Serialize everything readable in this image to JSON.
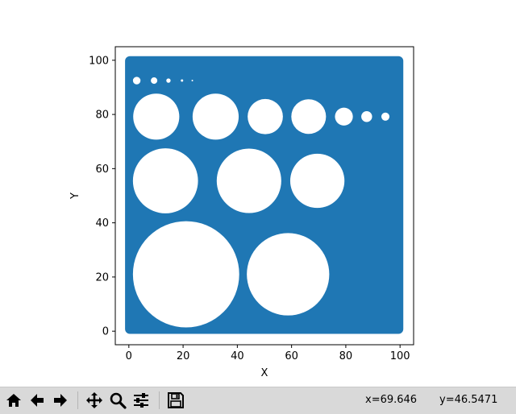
{
  "chart_data": {
    "type": "scatter",
    "title": "",
    "xlabel": "X",
    "ylabel": "Y",
    "xlim": [
      -5,
      105
    ],
    "ylim": [
      -5,
      105
    ],
    "xticks": [
      0,
      20,
      40,
      60,
      80,
      100
    ],
    "yticks": [
      0,
      20,
      40,
      60,
      80,
      100
    ],
    "xtick_labels": [
      "0",
      "20",
      "40",
      "60",
      "80",
      "100"
    ],
    "ytick_labels": [
      "0",
      "20",
      "40",
      "60",
      "80",
      "100"
    ],
    "fill_color": "#1f77b4",
    "filled_region": {
      "x": [
        -1.4,
        101.2
      ],
      "y": [
        -1.0,
        101.5
      ]
    },
    "holes": [
      {
        "x": 21.1,
        "y": 21.0,
        "r": 19.6
      },
      {
        "x": 58.7,
        "y": 21.0,
        "r": 15.2
      },
      {
        "x": 13.5,
        "y": 55.5,
        "r": 12.0
      },
      {
        "x": 44.3,
        "y": 55.5,
        "r": 11.9
      },
      {
        "x": 69.5,
        "y": 55.5,
        "r": 10.0
      },
      {
        "x": 10.1,
        "y": 79.2,
        "r": 8.5
      },
      {
        "x": 32.0,
        "y": 79.2,
        "r": 8.5
      },
      {
        "x": 50.3,
        "y": 79.2,
        "r": 6.5
      },
      {
        "x": 66.3,
        "y": 79.2,
        "r": 6.4
      },
      {
        "x": 79.3,
        "y": 79.2,
        "r": 3.3
      },
      {
        "x": 87.7,
        "y": 79.2,
        "r": 2.0
      },
      {
        "x": 94.6,
        "y": 79.2,
        "r": 1.5
      },
      {
        "x": 2.9,
        "y": 92.5,
        "r": 1.4
      },
      {
        "x": 9.3,
        "y": 92.5,
        "r": 1.2
      },
      {
        "x": 14.6,
        "y": 92.5,
        "r": 0.8
      },
      {
        "x": 19.6,
        "y": 92.5,
        "r": 0.45
      },
      {
        "x": 23.4,
        "y": 92.5,
        "r": 0.3
      }
    ],
    "grid": false,
    "legend": "none"
  },
  "toolbar": {
    "buttons": [
      {
        "name": "home-button",
        "icon": "home-icon"
      },
      {
        "name": "back-button",
        "icon": "arrow-left-icon"
      },
      {
        "name": "forward-button",
        "icon": "arrow-right-icon"
      },
      {
        "name": "pan-button",
        "icon": "move-icon"
      },
      {
        "name": "zoom-button",
        "icon": "magnifier-icon"
      },
      {
        "name": "configure-subplots-button",
        "icon": "sliders-icon"
      },
      {
        "name": "save-button",
        "icon": "floppy-disk-icon"
      }
    ],
    "coord_x": "x=69.646",
    "coord_y": "y=46.5471"
  }
}
